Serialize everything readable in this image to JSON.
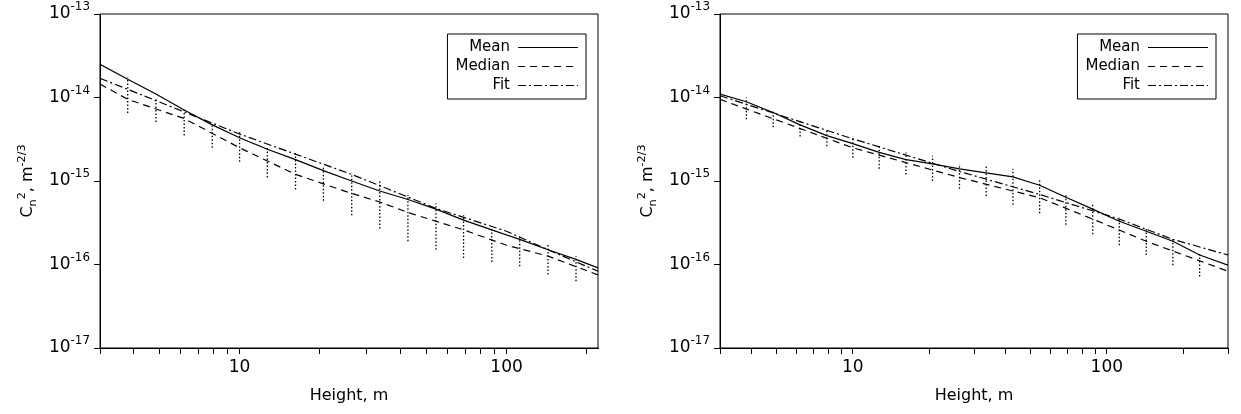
{
  "chart_data": [
    {
      "type": "line",
      "xlabel": "Height, m",
      "ylabel": "C$_{n}$$^{2}$, m$^{-2/3}$",
      "log": "xy",
      "legend": "top right",
      "xlim": [
        3,
        220
      ],
      "ylim": [
        1e-17,
        1e-13
      ],
      "xticks": [
        {
          "value": 3,
          "label": null
        },
        {
          "value": 4,
          "label": null
        },
        {
          "value": 5,
          "label": null
        },
        {
          "value": 6,
          "label": null
        },
        {
          "value": 7,
          "label": null
        },
        {
          "value": 8,
          "label": null
        },
        {
          "value": 9,
          "label": null
        },
        {
          "value": 10,
          "label": "10"
        },
        {
          "value": 20,
          "label": null
        },
        {
          "value": 30,
          "label": null
        },
        {
          "value": 40,
          "label": null
        },
        {
          "value": 50,
          "label": null
        },
        {
          "value": 60,
          "label": null
        },
        {
          "value": 70,
          "label": null
        },
        {
          "value": 80,
          "label": null
        },
        {
          "value": 90,
          "label": null
        },
        {
          "value": 100,
          "label": "100"
        },
        {
          "value": 200,
          "label": null
        }
      ],
      "yticks": [
        {
          "value": 1e-17,
          "label": "10$^{-17}$"
        },
        {
          "value": 1e-16,
          "label": "10$^{-16}$"
        },
        {
          "value": 1e-15,
          "label": "10$^{-15}$"
        },
        {
          "value": 1e-14,
          "label": "10$^{-14}$"
        },
        {
          "value": 1e-13,
          "label": "10$^{-13}$"
        }
      ],
      "series": [
        {
          "name": "Mean",
          "color": "#000000",
          "line_style": "solid",
          "x": [
            3,
            3.81,
            4.86,
            6.2,
            7.9,
            10,
            12.7,
            16.2,
            20.6,
            26.3,
            33.5,
            42.7,
            54.4,
            69,
            88,
            112,
            143,
            182,
            220
          ],
          "values": [
            2.5e-14,
            1.65e-14,
            1.1e-14,
            7.1e-15,
            4.7e-15,
            3.3e-15,
            2.4e-15,
            1.8e-15,
            1.33e-15,
            1e-15,
            7.6e-16,
            6e-16,
            4.6e-16,
            3.4e-16,
            2.6e-16,
            2e-16,
            1.5e-16,
            1.15e-16,
            9.1e-17
          ],
          "errors": [
            null,
            [
              6.5e-15,
              1.74e-14
            ],
            [
              5.1e-15,
              9.6e-15
            ],
            [
              3.5e-15,
              7.4e-15
            ],
            [
              2.5e-15,
              4.9e-15
            ],
            [
              1.7e-15,
              3.9e-15
            ],
            [
              1.1e-15,
              2.5e-15
            ],
            [
              7.9e-16,
              2.15e-15
            ],
            [
              5.8e-16,
              1.47e-15
            ],
            [
              3.9e-16,
              1.16e-15
            ],
            [
              2.7e-16,
              1e-15
            ],
            [
              1.9e-16,
              6.8e-16
            ],
            [
              1.5e-16,
              5.4e-16
            ],
            [
              1.2e-16,
              3.9e-16
            ],
            [
              1.07e-16,
              2.9e-16
            ],
            [
              9.5e-17,
              2.2e-16
            ],
            [
              7.6e-17,
              1.8e-16
            ],
            [
              6.3e-17,
              1.26e-16
            ],
            null
          ]
        },
        {
          "name": "Median",
          "color": "#000000",
          "line_style": "dashed",
          "x": [
            3,
            3.81,
            6.2,
            10,
            16.2,
            26.3,
            33.5,
            42.7,
            69,
            100,
            143,
            220
          ],
          "values": [
            1.45e-14,
            9.5e-15,
            5.6e-15,
            2.5e-15,
            1.2e-15,
            7.1e-16,
            5.6e-16,
            4.2e-16,
            2.6e-16,
            1.7e-16,
            1.26e-16,
            7.5e-17
          ]
        },
        {
          "name": "Fit",
          "color": "#000000",
          "line_style": "dashdot",
          "x": [
            3,
            10,
            26.3,
            54.4,
            100,
            143,
            220
          ],
          "values": [
            1.7e-14,
            3.65e-15,
            1.2e-15,
            4.7e-16,
            2.5e-16,
            1.5e-16,
            8.3e-17
          ]
        }
      ]
    },
    {
      "type": "line",
      "xlabel": "Height, m",
      "ylabel": "C$_{n}$$^{2}$, m$^{-2/3}$",
      "log": "xy",
      "legend": "top right",
      "xlim": [
        3,
        300
      ],
      "ylim": [
        1e-17,
        1e-13
      ],
      "xticks": [
        {
          "value": 3,
          "label": null
        },
        {
          "value": 4,
          "label": null
        },
        {
          "value": 5,
          "label": null
        },
        {
          "value": 6,
          "label": null
        },
        {
          "value": 7,
          "label": null
        },
        {
          "value": 8,
          "label": null
        },
        {
          "value": 9,
          "label": null
        },
        {
          "value": 10,
          "label": "10"
        },
        {
          "value": 20,
          "label": null
        },
        {
          "value": 30,
          "label": null
        },
        {
          "value": 40,
          "label": null
        },
        {
          "value": 50,
          "label": null
        },
        {
          "value": 60,
          "label": null
        },
        {
          "value": 70,
          "label": null
        },
        {
          "value": 80,
          "label": null
        },
        {
          "value": 90,
          "label": null
        },
        {
          "value": 100,
          "label": "100"
        },
        {
          "value": 200,
          "label": null
        },
        {
          "value": 300,
          "label": null
        }
      ],
      "yticks": [
        {
          "value": 1e-17,
          "label": "10$^{-17}$"
        },
        {
          "value": 1e-16,
          "label": "10$^{-16}$"
        },
        {
          "value": 1e-15,
          "label": "10$^{-15}$"
        },
        {
          "value": 1e-14,
          "label": "10$^{-14}$"
        },
        {
          "value": 1e-13,
          "label": "10$^{-13}$"
        }
      ],
      "series": [
        {
          "name": "Mean",
          "color": "#000000",
          "line_style": "solid",
          "x": [
            3,
            3.81,
            4.86,
            6.2,
            7.9,
            10,
            12.7,
            16.2,
            20.6,
            26.3,
            33.5,
            42.7,
            54.4,
            69,
            88,
            112,
            143,
            182,
            232,
            300
          ],
          "values": [
            1.1e-14,
            8.9e-15,
            6.6e-15,
            4.7e-15,
            3.5e-15,
            2.8e-15,
            2.2e-15,
            1.8e-15,
            1.6e-15,
            1.4e-15,
            1.25e-15,
            1.12e-15,
            8.9e-16,
            6.4e-16,
            4.6e-16,
            3.3e-16,
            2.5e-16,
            1.9e-16,
            1.3e-16,
            9.8e-17
          ],
          "errors": [
            null,
            [
              5.5e-15,
              1e-14
            ],
            [
              4.4e-15,
              6.8e-15
            ],
            [
              3.4e-15,
              5.4e-15
            ],
            [
              2.6e-15,
              4.1e-15
            ],
            [
              1.9e-15,
              3.4e-15
            ],
            [
              1.4e-15,
              2.6e-15
            ],
            [
              1.2e-15,
              2.2e-15
            ],
            [
              1e-15,
              2e-15
            ],
            [
              8.1e-16,
              1.6e-15
            ],
            [
              6.6e-16,
              1.55e-15
            ],
            [
              5.2e-16,
              1.4e-15
            ],
            [
              4.1e-16,
              1.07e-15
            ],
            [
              3e-16,
              6.9e-16
            ],
            [
              2.3e-16,
              5.2e-16
            ],
            [
              1.7e-16,
              3.7e-16
            ],
            [
              1.3e-16,
              2.8e-16
            ],
            [
              9.8e-17,
              2.1e-16
            ],
            [
              7.2e-17,
              1.4e-16
            ],
            null
          ]
        },
        {
          "name": "Median",
          "color": "#000000",
          "line_style": "dashed",
          "x": [
            3,
            10,
            26.3,
            54.4,
            88,
            143,
            300
          ],
          "values": [
            9.5e-15,
            2.5e-15,
            1.1e-15,
            6.3e-16,
            3.5e-16,
            1.9e-16,
            8.3e-17
          ]
        },
        {
          "name": "Fit",
          "color": "#000000",
          "line_style": "dashdot",
          "x": [
            3,
            10,
            26.3,
            54.4,
            112,
            182,
            300
          ],
          "values": [
            1.05e-14,
            3.2e-15,
            1.3e-15,
            6.9e-16,
            3.5e-16,
            2e-16,
            1.3e-16
          ]
        }
      ]
    }
  ]
}
